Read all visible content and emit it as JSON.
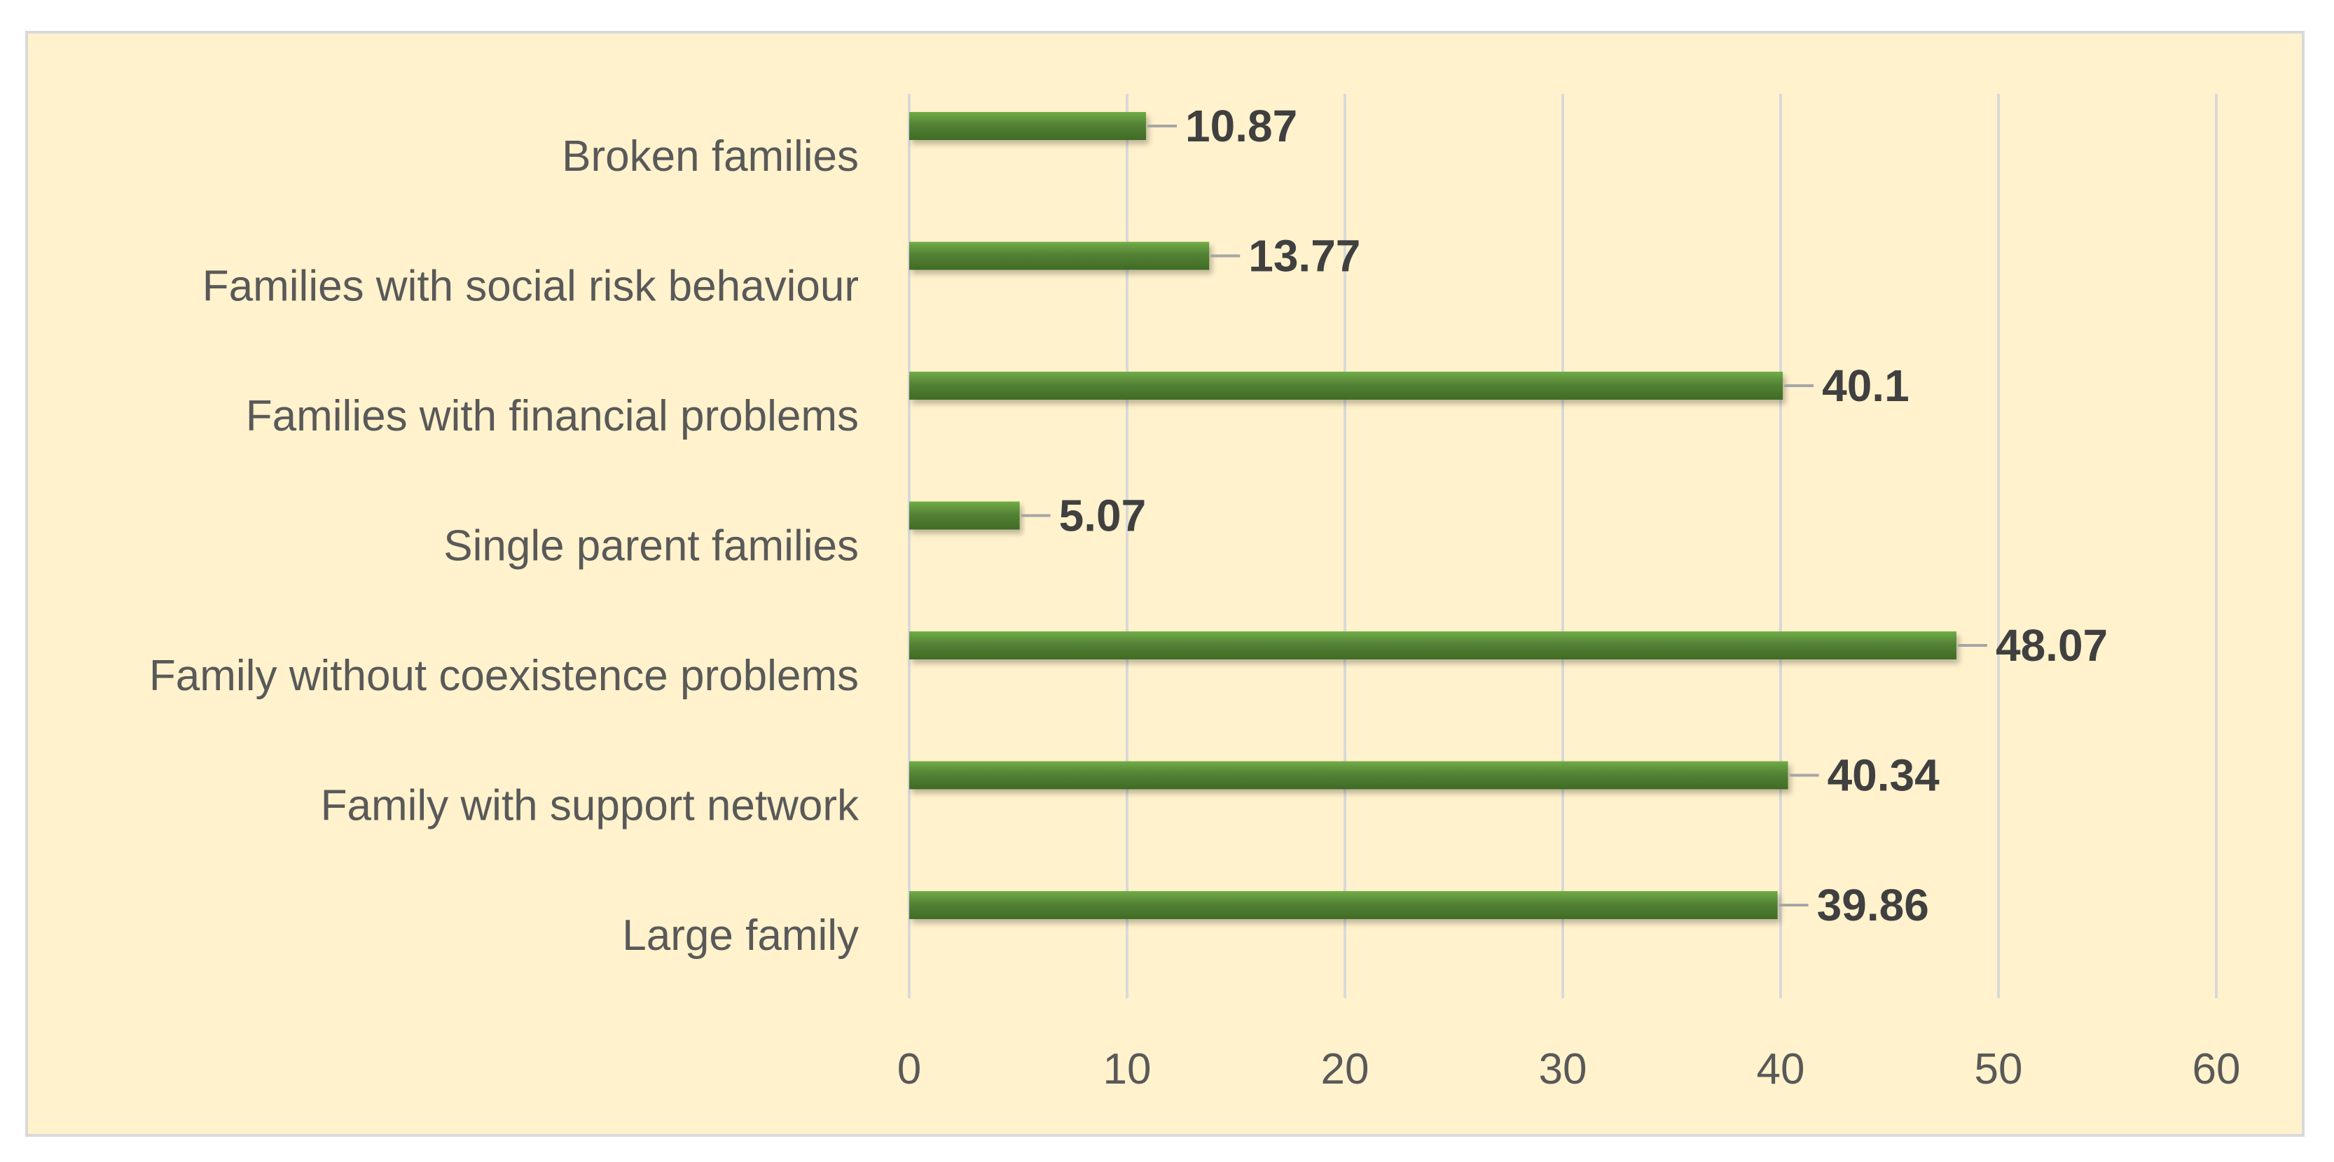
{
  "chart_data": {
    "type": "bar",
    "orientation": "horizontal",
    "categories": [
      "Broken families",
      "Families with social risk behaviour",
      "Families with financial problems",
      "Single parent families",
      "Family without coexistence problems",
      "Family with support network",
      "Large family"
    ],
    "values": [
      10.87,
      13.77,
      40.1,
      5.07,
      48.07,
      40.34,
      39.86
    ],
    "value_labels": [
      "10.87",
      "13.77",
      "40.1",
      "5.07",
      "48.07",
      "40.34",
      "39.86"
    ],
    "x_ticks": [
      "0",
      "10",
      "20",
      "30",
      "40",
      "50",
      "60"
    ],
    "xlim": [
      0,
      60
    ],
    "grid": true,
    "title": "",
    "xlabel": "",
    "ylabel": "",
    "colors": {
      "bar": "#548235",
      "bar_highlight": "#70ad47",
      "background": "#fff2cc",
      "gridline": "#d9d9d9",
      "label": "#595959",
      "value_label": "#404040"
    }
  }
}
